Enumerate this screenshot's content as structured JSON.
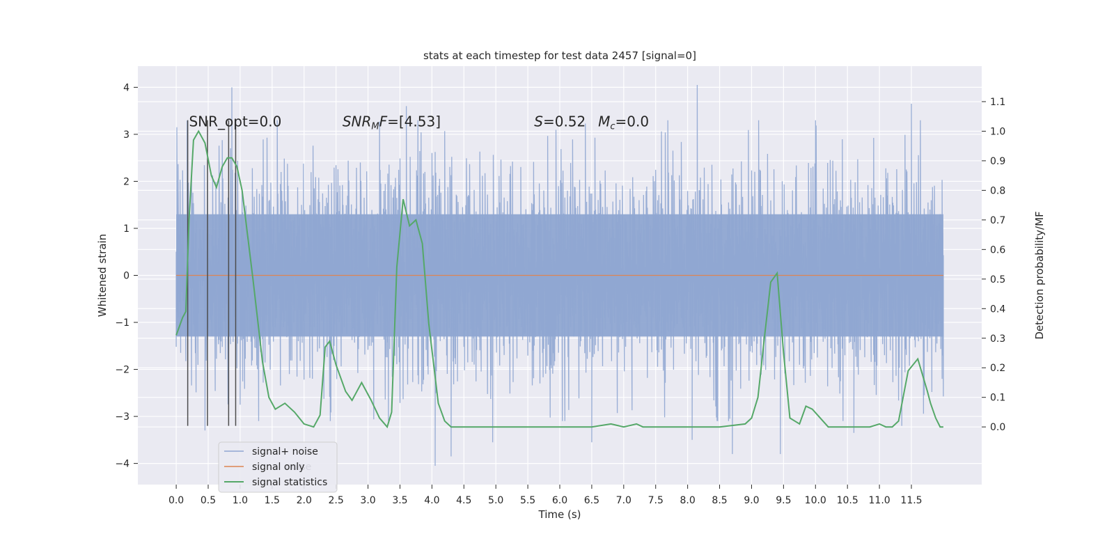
{
  "chart_data": {
    "type": "line",
    "title": "stats at each timestep for test data 2457 [signal=0]",
    "xlabel": "Time (s)",
    "ylabel_left": "Whitened strain",
    "ylabel_right": "Detection probability/MF",
    "xlim": [
      -0.6,
      12.6
    ],
    "ylim_left": [
      -4.45,
      4.45
    ],
    "ylim_right": [
      -0.195,
      1.22
    ],
    "x_ticks": [
      0.0,
      0.5,
      1.0,
      1.5,
      2.0,
      2.5,
      3.0,
      3.5,
      4.0,
      4.5,
      5.0,
      5.5,
      6.0,
      6.5,
      7.0,
      7.5,
      8.0,
      8.5,
      9.0,
      9.5,
      10.0,
      10.5,
      11.0,
      11.5
    ],
    "x_tick_labels": [
      "0.0",
      "0.5",
      "1.0",
      "1.5",
      "2.0",
      "2.5",
      "3.0",
      "3.5",
      "4.0",
      "4.5",
      "5.0",
      "5.5",
      "6.0",
      "6.5",
      "7.0",
      "7.5",
      "8.0",
      "8.5",
      "9.0",
      "9.5",
      "10.0",
      "10.5",
      "11.0",
      "11.5"
    ],
    "y_left_ticks": [
      4,
      3,
      2,
      1,
      0,
      -1,
      -2,
      -3,
      -4
    ],
    "y_left_tick_labels": [
      "4",
      "3",
      "2",
      "1",
      "0",
      "−1",
      "−2",
      "−3",
      "−4"
    ],
    "y_right_ticks": [
      1.1,
      1.0,
      0.9,
      0.8,
      0.7,
      0.6,
      0.5,
      0.4,
      0.3,
      0.2,
      0.1,
      0.0
    ],
    "y_right_tick_labels": [
      "1.1",
      "1.0",
      "0.9",
      "0.8",
      "0.7",
      "0.6",
      "0.5",
      "0.4",
      "0.3",
      "0.2",
      "0.1",
      "0.0"
    ],
    "grid": true,
    "legend_position": "lower-left",
    "series": [
      {
        "name": "signal+ noise",
        "axis": "left",
        "color": "#8fa6d1",
        "t_start": 0.0,
        "t_end": 12.0,
        "core_band": [
          -1.3,
          1.3
        ],
        "typical_extent": [
          -2.2,
          2.4
        ],
        "spike_extremes": [
          [
            0.87,
            4.0
          ],
          [
            8.15,
            4.05
          ],
          [
            3.6,
            3.6
          ],
          [
            11.5,
            3.65
          ],
          [
            4.05,
            -4.05
          ],
          [
            4.3,
            -3.85
          ],
          [
            4.95,
            -3.55
          ],
          [
            6.5,
            -3.55
          ],
          [
            8.07,
            -3.5
          ],
          [
            8.7,
            -3.8
          ],
          [
            9.45,
            -3.8
          ],
          [
            10.6,
            -3.35
          ],
          [
            0.45,
            -3.3
          ],
          [
            1.0,
            -2.75
          ],
          [
            11.35,
            -3.2
          ]
        ]
      },
      {
        "name": "signal only",
        "axis": "left",
        "color": "#dd8452",
        "x": [
          0.0,
          12.0
        ],
        "y": [
          0.0,
          0.0
        ]
      },
      {
        "name": "signal statistics",
        "axis": "right",
        "color": "#55a868",
        "x": [
          0.0,
          0.1,
          0.15,
          0.2,
          0.27,
          0.35,
          0.45,
          0.55,
          0.63,
          0.72,
          0.8,
          0.87,
          0.95,
          1.03,
          1.2,
          1.35,
          1.45,
          1.55,
          1.7,
          1.85,
          2.0,
          2.15,
          2.25,
          2.33,
          2.4,
          2.5,
          2.65,
          2.75,
          2.9,
          3.05,
          3.18,
          3.3,
          3.37,
          3.45,
          3.55,
          3.65,
          3.75,
          3.85,
          3.95,
          4.1,
          4.2,
          4.3,
          4.5,
          5.0,
          5.5,
          6.0,
          6.5,
          6.8,
          7.0,
          7.2,
          7.3,
          7.5,
          8.0,
          8.5,
          8.9,
          9.0,
          9.1,
          9.2,
          9.3,
          9.4,
          9.5,
          9.6,
          9.75,
          9.85,
          9.95,
          10.2,
          10.5,
          10.7,
          10.85,
          11.0,
          11.1,
          11.2,
          11.3,
          11.45,
          11.6,
          11.75,
          11.8,
          11.88,
          11.95,
          12.0,
          11.9
        ],
        "y": [
          0.31,
          0.37,
          0.39,
          0.7,
          0.97,
          1.0,
          0.96,
          0.85,
          0.81,
          0.88,
          0.91,
          0.91,
          0.88,
          0.8,
          0.5,
          0.22,
          0.1,
          0.06,
          0.08,
          0.05,
          0.01,
          0.0,
          0.04,
          0.27,
          0.29,
          0.21,
          0.12,
          0.09,
          0.15,
          0.09,
          0.03,
          0.0,
          0.05,
          0.54,
          0.77,
          0.68,
          0.7,
          0.62,
          0.35,
          0.08,
          0.02,
          0.0,
          0.0,
          0.0,
          0.0,
          0.0,
          0.0,
          0.01,
          0.0,
          0.01,
          0.0,
          0.0,
          0.0,
          0.0,
          0.01,
          0.03,
          0.1,
          0.3,
          0.49,
          0.52,
          0.25,
          0.03,
          0.01,
          0.07,
          0.06,
          0.0,
          0.0,
          0.0,
          0.0,
          0.01,
          0.0,
          0.0,
          0.02,
          0.19,
          0.23,
          0.12,
          0.08,
          0.03,
          0.0,
          0.0,
          0.0
        ]
      }
    ],
    "vertical_lines": {
      "color": "#4c4c4c",
      "x": [
        0.18,
        0.49,
        0.82,
        0.93
      ],
      "y_range": [
        -3.2,
        3.3
      ]
    },
    "annotations": [
      {
        "text": "SNR_opt=0.0",
        "x": 0.2,
        "y": 3.3
      },
      {
        "text": "SNR_MF=[4.53]",
        "x": 2.6,
        "y": 3.3,
        "math": true,
        "main": "SNR",
        "sub": "M",
        "rest": "F=[4.53]"
      },
      {
        "text": "S=0.52",
        "x": 5.6,
        "y": 3.3,
        "math": true,
        "italic": "S",
        "rest": "=0.52"
      },
      {
        "text": "M_c=0.0",
        "x": 6.6,
        "y": 3.3,
        "math": true,
        "italic": "M",
        "sub": "c",
        "rest": "=0.0"
      }
    ],
    "legend_ghost_text": "noise",
    "legend": [
      "signal+ noise",
      "signal only",
      "signal statistics"
    ]
  }
}
